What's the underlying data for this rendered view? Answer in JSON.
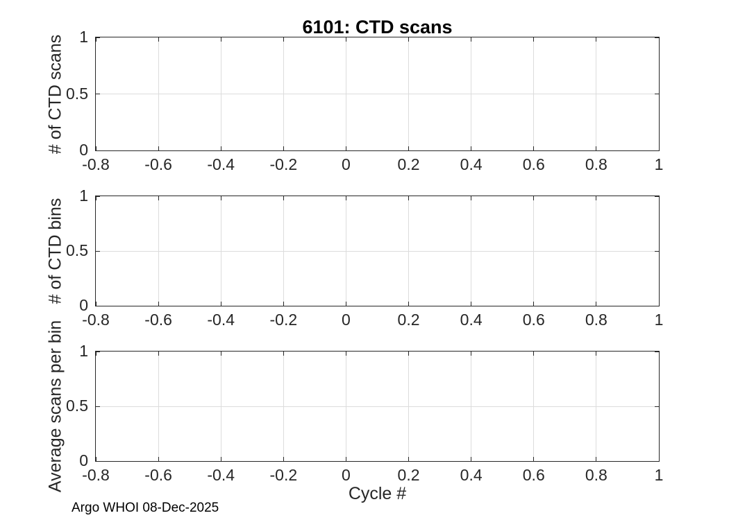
{
  "figure": {
    "title": "6101: CTD scans",
    "xlabel": "Cycle #",
    "footer": "Argo WHOI 08-Dec-2025"
  },
  "colors": {
    "axis": "#262626",
    "grid": "#dcdcdc",
    "text": "#262626",
    "title": "#000000",
    "background": "#ffffff"
  },
  "chart_data": [
    {
      "type": "line",
      "title": "6101: CTD scans",
      "ylabel": "# of CTD scans",
      "xlabel": "",
      "xlim": [
        -0.8,
        1
      ],
      "ylim": [
        0,
        1
      ],
      "xticks": [
        -0.8,
        -0.6,
        -0.4,
        -0.2,
        0,
        0.2,
        0.4,
        0.6,
        0.8,
        1
      ],
      "xtick_labels": [
        "-0.8",
        "-0.6",
        "-0.4",
        "-0.2",
        "0",
        "0.2",
        "0.4",
        "0.6",
        "0.8",
        "1"
      ],
      "yticks": [
        0,
        0.5,
        1
      ],
      "ytick_labels": [
        "0",
        "0.5",
        "1"
      ],
      "grid": true,
      "series": []
    },
    {
      "type": "line",
      "title": "",
      "ylabel": "# of CTD bins",
      "xlabel": "",
      "xlim": [
        -0.8,
        1
      ],
      "ylim": [
        0,
        1
      ],
      "xticks": [
        -0.8,
        -0.6,
        -0.4,
        -0.2,
        0,
        0.2,
        0.4,
        0.6,
        0.8,
        1
      ],
      "xtick_labels": [
        "-0.8",
        "-0.6",
        "-0.4",
        "-0.2",
        "0",
        "0.2",
        "0.4",
        "0.6",
        "0.8",
        "1"
      ],
      "yticks": [
        0,
        0.5,
        1
      ],
      "ytick_labels": [
        "0",
        "0.5",
        "1"
      ],
      "grid": true,
      "series": []
    },
    {
      "type": "line",
      "title": "",
      "ylabel": "Average scans per bin",
      "xlabel": "Cycle #",
      "xlim": [
        -0.8,
        1
      ],
      "ylim": [
        0,
        1
      ],
      "xticks": [
        -0.8,
        -0.6,
        -0.4,
        -0.2,
        0,
        0.2,
        0.4,
        0.6,
        0.8,
        1
      ],
      "xtick_labels": [
        "-0.8",
        "-0.6",
        "-0.4",
        "-0.2",
        "0",
        "0.2",
        "0.4",
        "0.6",
        "0.8",
        "1"
      ],
      "yticks": [
        0,
        0.5,
        1
      ],
      "ytick_labels": [
        "0",
        "0.5",
        "1"
      ],
      "grid": true,
      "series": []
    }
  ]
}
